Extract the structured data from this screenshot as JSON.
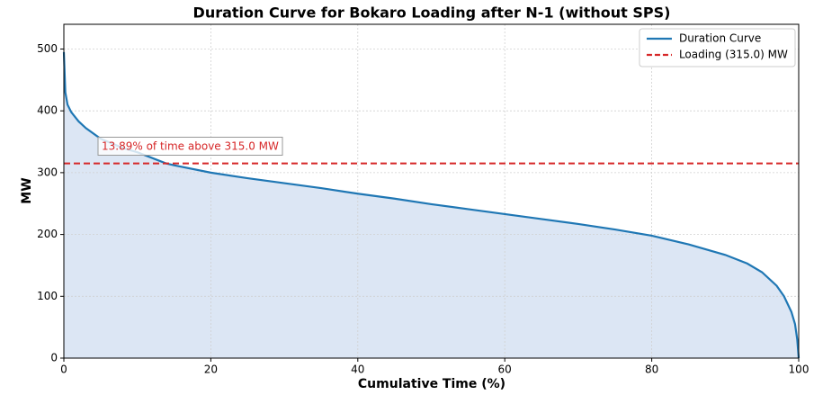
{
  "chart_data": {
    "type": "line",
    "title": "Duration Curve for Bokaro Loading after N-1 (without SPS)",
    "xlabel": "Cumulative Time (%)",
    "ylabel": "MW",
    "x": [
      0,
      0.2,
      0.5,
      1,
      2,
      3,
      5,
      8,
      10,
      13.89,
      15,
      20,
      25,
      30,
      35,
      40,
      45,
      50,
      55,
      60,
      65,
      70,
      75,
      80,
      85,
      90,
      93,
      95,
      97,
      98,
      99,
      99.5,
      99.8,
      100
    ],
    "series": [
      {
        "name": "Duration Curve",
        "color": "#1f77b4",
        "fill": "#dce6f4",
        "values": [
          495,
          430,
          410,
          398,
          383,
          372,
          355,
          340,
          333,
          315,
          312,
          300,
          291,
          283,
          275,
          266,
          258,
          249,
          241,
          233,
          225,
          217,
          208,
          198,
          184,
          167,
          153,
          139,
          117,
          100,
          75,
          55,
          30,
          0
        ]
      }
    ],
    "hline": {
      "name": "Loading (315.0) MW",
      "value": 315,
      "color": "#d62728"
    },
    "annotation": "13.89% of time above 315.0 MW",
    "xlim": [
      0,
      100
    ],
    "ylim": [
      0,
      540
    ],
    "xticks": [
      0,
      20,
      40,
      60,
      80,
      100
    ],
    "yticks": [
      0,
      100,
      200,
      300,
      400,
      500
    ],
    "grid": true,
    "legend": "upper right"
  }
}
